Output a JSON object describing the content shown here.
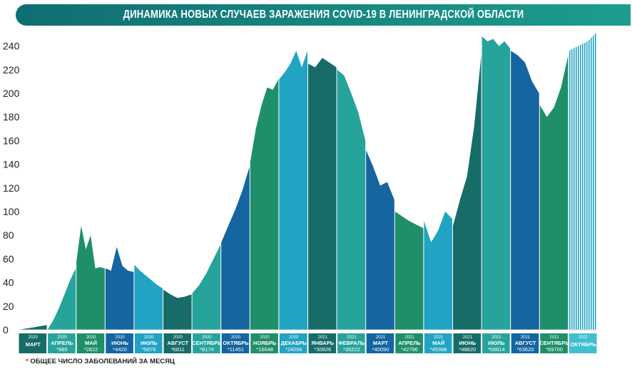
{
  "title": "ДИНАМИКА НОВЫХ СЛУЧАЕВ ЗАРАЖЕНИЯ COVID-19 В ЛЕНИНГРАДСКОЙ ОБЛАСТИ",
  "footnote": {
    "star": "*",
    "text": " ОБЩЕЕ ЧИСЛО ЗАБОЛЕВАНИЙ ЗА МЕСЯЦ"
  },
  "colors": {
    "teal_dark": "#176c68",
    "green": "#1f8f6a",
    "blue_dark": "#1565a0",
    "cyan": "#21a3c4",
    "teal": "#26a49c",
    "october_label": "#3fc0cf"
  },
  "chart_data": {
    "type": "area",
    "title": "ДИНАМИКА НОВЫХ СЛУЧАЕВ ЗАРАЖЕНИЯ COVID-19 В ЛЕНИНГРАДСКОЙ ОБЛАСТИ",
    "ylim": [
      0,
      250
    ],
    "yticks": [
      0,
      20,
      40,
      60,
      80,
      100,
      120,
      140,
      160,
      180,
      200,
      220,
      240
    ],
    "grid": false,
    "legend": "none",
    "months": [
      {
        "year": "2020",
        "name": "МАРТ",
        "total": "",
        "color": "#176c68",
        "values": [
          0,
          1,
          2,
          3,
          4
        ]
      },
      {
        "year": "2020",
        "name": "АПРЕЛЬ",
        "total": "*885",
        "color": "#26a49c",
        "values": [
          0,
          8,
          18,
          30,
          42,
          52
        ]
      },
      {
        "year": "2020",
        "name": "МАЙ",
        "total": "*2822",
        "color": "#1f8f6a",
        "values": [
          58,
          88,
          68,
          80,
          52,
          53,
          52
        ]
      },
      {
        "year": "2020",
        "name": "ИЮНЬ",
        "total": "*4420",
        "color": "#1565a0",
        "values": [
          52,
          50,
          70,
          54,
          50,
          49
        ]
      },
      {
        "year": "2020",
        "name": "ИЮЛЬ",
        "total": "*5876",
        "color": "#21a3c4",
        "values": [
          55,
          50,
          46,
          42,
          38,
          35
        ]
      },
      {
        "year": "2020",
        "name": "АВГУСТ",
        "total": "*6811",
        "color": "#176c68",
        "values": [
          34,
          30,
          27,
          28,
          30
        ]
      },
      {
        "year": "2020",
        "name": "СЕНТЯБРЬ",
        "total": "*8174",
        "color": "#26a49c",
        "values": [
          31,
          38,
          48,
          60,
          72
        ]
      },
      {
        "year": "2020",
        "name": "ОКТЯБРЬ",
        "total": "*11451",
        "color": "#1565a0",
        "values": [
          74,
          88,
          102,
          118,
          138
        ]
      },
      {
        "year": "2020",
        "name": "НОЯБРЬ",
        "total": "*16648",
        "color": "#1f8f6a",
        "values": [
          142,
          170,
          190,
          205,
          203,
          212
        ]
      },
      {
        "year": "2020",
        "name": "ДЕКАБРЬ",
        "total": "*24056",
        "color": "#21a3c4",
        "values": [
          212,
          218,
          225,
          236,
          222,
          236
        ]
      },
      {
        "year": "2021",
        "name": "ЯНВАРЬ",
        "total": "*30926",
        "color": "#176c68",
        "values": [
          225,
          222,
          230,
          226,
          222
        ]
      },
      {
        "year": "2021",
        "name": "ФЕВРАЛЬ",
        "total": "*36222",
        "color": "#26a49c",
        "values": [
          220,
          215,
          200,
          184,
          160
        ]
      },
      {
        "year": "2021",
        "name": "МАРТ",
        "total": "*40090",
        "color": "#1565a0",
        "values": [
          152,
          138,
          122,
          125,
          110
        ]
      },
      {
        "year": "2021",
        "name": "АПРЕЛЬ",
        "total": "*42796",
        "color": "#1f8f6a",
        "values": [
          100,
          96,
          92,
          89,
          86
        ]
      },
      {
        "year": "2021",
        "name": "МАЙ",
        "total": "*45388",
        "color": "#21a3c4",
        "values": [
          92,
          74,
          84,
          100,
          94
        ]
      },
      {
        "year": "2021",
        "name": "ИЮНЬ",
        "total": "*48820",
        "color": "#176c68",
        "values": [
          88,
          110,
          130,
          172,
          232
        ]
      },
      {
        "year": "2021",
        "name": "ИЮЛЬ",
        "total": "*56614",
        "color": "#26a49c",
        "values": [
          248,
          244,
          246,
          240,
          244,
          238
        ]
      },
      {
        "year": "2021",
        "name": "АВГУСТ",
        "total": "*63620",
        "color": "#1565a0",
        "values": [
          236,
          232,
          226,
          210,
          200
        ]
      },
      {
        "year": "2021",
        "name": "СЕНТЯБРЬ",
        "total": "*69700",
        "color": "#1f8f6a",
        "values": [
          190,
          180,
          188,
          205,
          232
        ]
      },
      {
        "year": "2021",
        "name": "ОКТЯБРЬ",
        "total": "",
        "color": "#21a3c4",
        "values": [
          236,
          240,
          244,
          252
        ]
      }
    ]
  }
}
